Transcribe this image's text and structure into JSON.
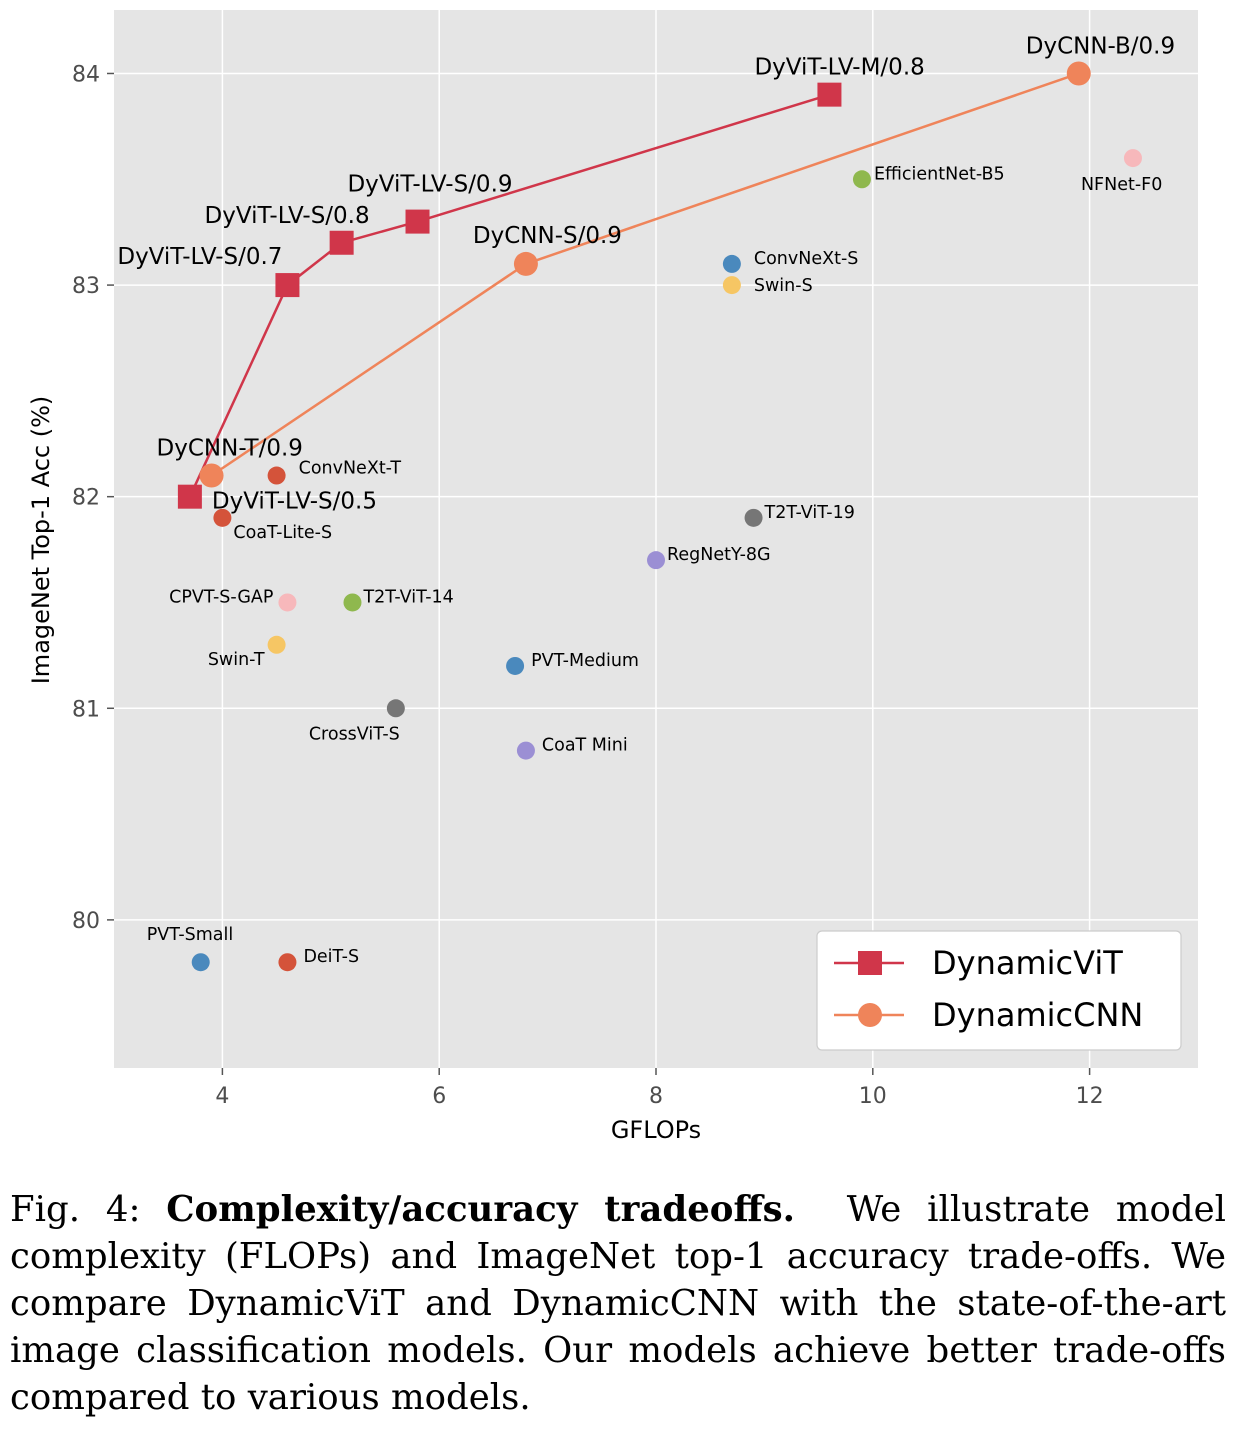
{
  "chart_data": {
    "type": "scatter",
    "xlabel": "GFLOPs",
    "ylabel": "ImageNet Top-1 Acc (%)",
    "xlim": [
      3.0,
      13.0
    ],
    "ylim": [
      79.3,
      84.3
    ],
    "xticks": [
      4,
      6,
      8,
      10,
      12
    ],
    "yticks": [
      80,
      81,
      82,
      83,
      84
    ],
    "grid": true,
    "legend_position": "lower-right",
    "series": [
      {
        "name": "DynamicViT",
        "marker": "square",
        "color": "#d0364a",
        "points": [
          {
            "x": 3.7,
            "y": 82.0,
            "label": "DyViT-LV-S/0.5"
          },
          {
            "x": 4.6,
            "y": 83.0,
            "label": "DyViT-LV-S/0.7"
          },
          {
            "x": 5.1,
            "y": 83.2,
            "label": "DyViT-LV-S/0.8"
          },
          {
            "x": 5.8,
            "y": 83.3,
            "label": "DyViT-LV-S/0.9"
          },
          {
            "x": 9.6,
            "y": 83.9,
            "label": "DyViT-LV-M/0.8"
          }
        ]
      },
      {
        "name": "DynamicCNN",
        "marker": "circle",
        "color": "#ef845a",
        "points": [
          {
            "x": 3.9,
            "y": 82.1,
            "label": "DyCNN-T/0.9"
          },
          {
            "x": 6.8,
            "y": 83.1,
            "label": "DyCNN-S/0.9"
          },
          {
            "x": 11.9,
            "y": 84.0,
            "label": "DyCNN-B/0.9"
          }
        ]
      }
    ],
    "others": [
      {
        "label": "NFNet-F0",
        "x": 12.4,
        "y": 83.6,
        "color": "#f7b8bb"
      },
      {
        "label": "EfficientNet-B5",
        "x": 9.9,
        "y": 83.5,
        "color": "#8fb84e"
      },
      {
        "label": "ConvNeXt-S",
        "x": 8.7,
        "y": 83.1,
        "color": "#4a89bd"
      },
      {
        "label": "Swin-S",
        "x": 8.7,
        "y": 83.0,
        "color": "#f6c664"
      },
      {
        "label": "ConvNeXt-T",
        "x": 4.5,
        "y": 82.1,
        "color": "#d4533a"
      },
      {
        "label": "CoaT-Lite-S",
        "x": 4.0,
        "y": 81.9,
        "color": "#d4533a"
      },
      {
        "label": "T2T-ViT-19",
        "x": 8.9,
        "y": 81.9,
        "color": "#767676"
      },
      {
        "label": "RegNetY-8G",
        "x": 8.0,
        "y": 81.7,
        "color": "#9b8fd4"
      },
      {
        "label": "CPVT-S-GAP",
        "x": 4.6,
        "y": 81.5,
        "color": "#f7b8bb"
      },
      {
        "label": "T2T-ViT-14",
        "x": 5.2,
        "y": 81.5,
        "color": "#8fb84e"
      },
      {
        "label": "Swin-T",
        "x": 4.5,
        "y": 81.3,
        "color": "#f6c664"
      },
      {
        "label": "PVT-Medium",
        "x": 6.7,
        "y": 81.2,
        "color": "#4a89bd"
      },
      {
        "label": "CrossViT-S",
        "x": 5.6,
        "y": 81.0,
        "color": "#767676"
      },
      {
        "label": "CoaT Mini",
        "x": 6.8,
        "y": 80.8,
        "color": "#9b8fd4"
      },
      {
        "label": "PVT-Small",
        "x": 3.8,
        "y": 79.8,
        "color": "#4a89bd"
      },
      {
        "label": "DeiT-S",
        "x": 4.6,
        "y": 79.8,
        "color": "#d4533a"
      }
    ]
  },
  "caption": {
    "prefix": "Fig. 4: ",
    "bold": "Complexity/accuracy tradeoffs.",
    "text": "We illustrate model complexity (FLOPs) and ImageNet top-1 accuracy trade-offs. We compare DynamicViT and DynamicCNN with the state-of-the-art image classification models. Our models achieve better trade-offs compared to various models."
  }
}
